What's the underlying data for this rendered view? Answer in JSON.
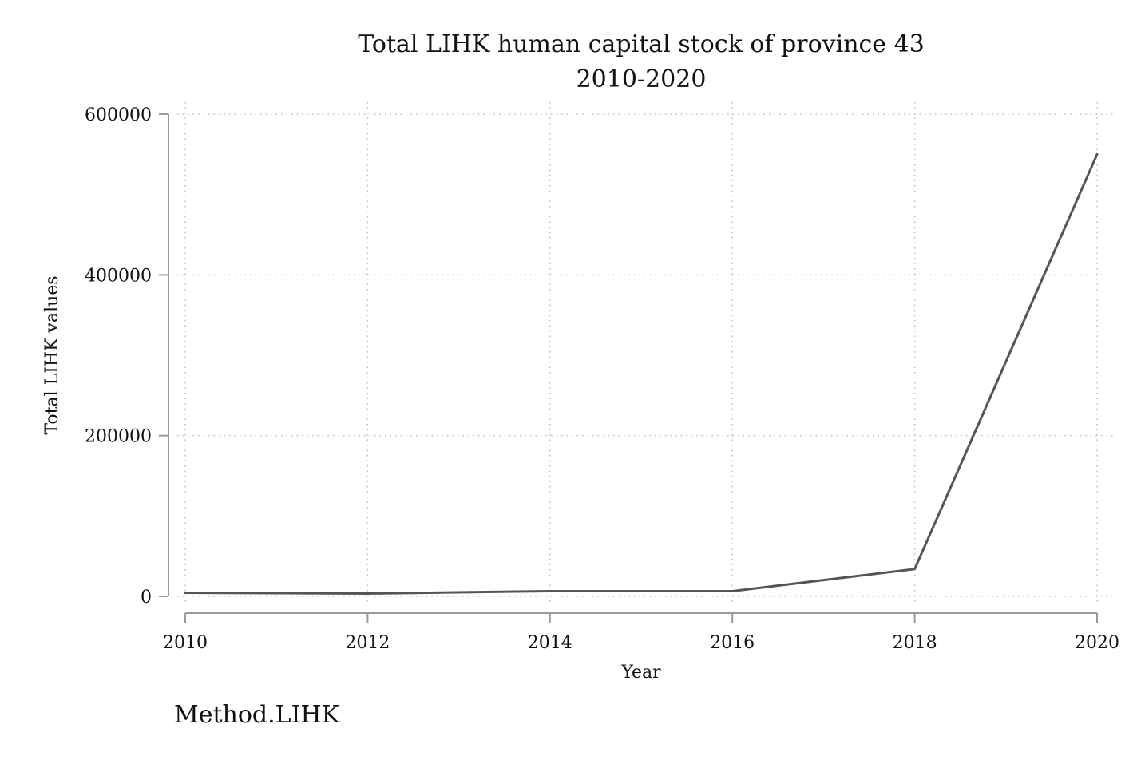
{
  "chart_data": {
    "type": "line",
    "title": "Total LIHK human capital stock of province 43",
    "subtitle": "2010-2020",
    "xlabel": "Year",
    "ylabel": "Total LIHK values",
    "note": "Method.LIHK",
    "x": [
      2010,
      2012,
      2014,
      2016,
      2018,
      2020
    ],
    "x_ticks": [
      "2010",
      "2012",
      "2014",
      "2016",
      "2018",
      "2020"
    ],
    "y_ticks": [
      "0",
      "200000",
      "400000",
      "600000"
    ],
    "xlim": [
      2010,
      2020
    ],
    "ylim": [
      0,
      600000
    ],
    "grid": true,
    "series": [
      {
        "values": [
          4500,
          3500,
          6500,
          6500,
          34000,
          550000
        ],
        "color": "#555555"
      }
    ]
  }
}
